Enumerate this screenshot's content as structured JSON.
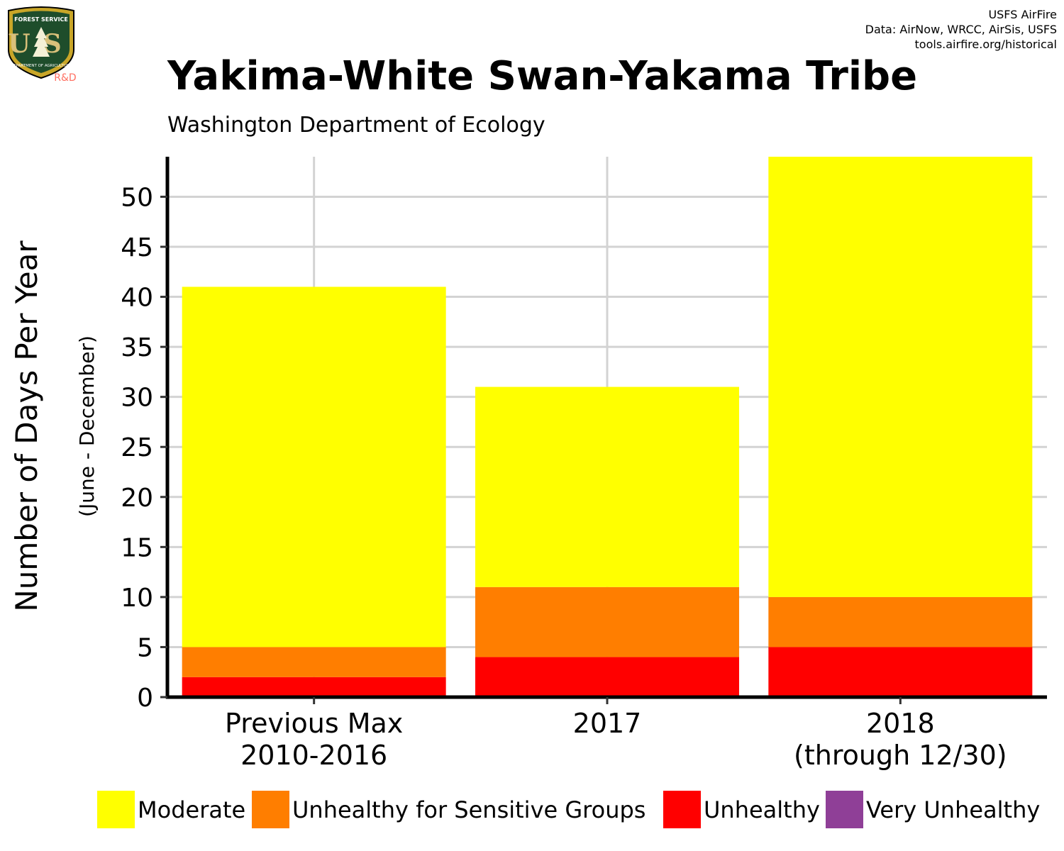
{
  "logo": {
    "top_text": "FOREST SERVICE",
    "letters": "US",
    "bottom_text": "DEPARTMENT OF AGRICULTURE",
    "badge_text": "R&D"
  },
  "credits": [
    "USFS AirFire",
    "Data: AirNow, WRCC, AirSis, USFS",
    "tools.airfire.org/historical"
  ],
  "chart_data": {
    "type": "bar",
    "stacked": true,
    "title": "Yakima-White Swan-Yakama Tribe",
    "subtitle": "Washington Department of Ecology",
    "ylabel": "Number of Days Per Year",
    "ylabel_sub": "(June - December)",
    "xlabel": "",
    "categories": [
      [
        "Previous Max",
        "2010-2016"
      ],
      [
        "2017"
      ],
      [
        "2018",
        "(through 12/30)"
      ]
    ],
    "series": [
      {
        "name": "Unhealthy",
        "color": "#ff0000",
        "values": [
          2,
          4,
          5
        ]
      },
      {
        "name": "Unhealthy for Sensitive Groups",
        "color": "#ff7e00",
        "values": [
          3,
          7,
          5
        ]
      },
      {
        "name": "Moderate",
        "color": "#ffff00",
        "values": [
          36,
          20,
          44
        ]
      },
      {
        "name": "Very Unhealthy",
        "color": "#8f3f97",
        "values": [
          0,
          0,
          0
        ]
      }
    ],
    "legend_order": [
      "Moderate",
      "Unhealthy for Sensitive Groups",
      "Unhealthy",
      "Very Unhealthy"
    ],
    "legend_position": "bottom",
    "ylim": [
      0,
      54
    ],
    "yticks": [
      0,
      5,
      10,
      15,
      20,
      25,
      30,
      35,
      40,
      45,
      50
    ],
    "grid": true,
    "grid_color": "#d3d3d3"
  }
}
